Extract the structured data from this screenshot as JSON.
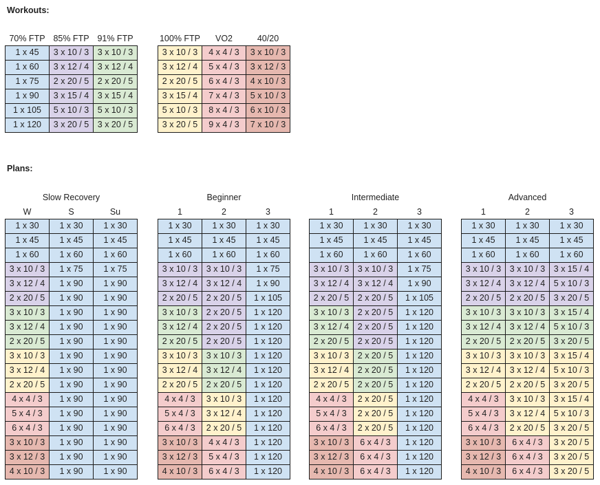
{
  "sections": {
    "workouts_title": "Workouts:",
    "plans_title": "Plans:"
  },
  "colors": {
    "b": "#cfe2f3",
    "p": "#d9d2e9",
    "g": "#d9ead3",
    "y": "#fff2cc",
    "r": "#f4cccc",
    "d": "#e6b8af"
  },
  "workouts": [
    {
      "headers": [
        "70% FTP",
        "85% FTP",
        "91% FTP"
      ],
      "rows": [
        [
          [
            "1 x 45",
            "b"
          ],
          [
            "3 x 10 / 3",
            "p"
          ],
          [
            "3 x 10 / 3",
            "g"
          ]
        ],
        [
          [
            "1 x 60",
            "b"
          ],
          [
            "3 x 12 / 4",
            "p"
          ],
          [
            "3 x 12 / 4",
            "g"
          ]
        ],
        [
          [
            "1 x 75",
            "b"
          ],
          [
            "2 x 20 / 5",
            "p"
          ],
          [
            "2 x 20 / 5",
            "g"
          ]
        ],
        [
          [
            "1 x 90",
            "b"
          ],
          [
            "3 x 15 / 4",
            "p"
          ],
          [
            "3 x 15 / 4",
            "g"
          ]
        ],
        [
          [
            "1 x 105",
            "b"
          ],
          [
            "5 x 10 / 3",
            "p"
          ],
          [
            "5 x 10 / 3",
            "g"
          ]
        ],
        [
          [
            "1 x 120",
            "b"
          ],
          [
            "3 x 20 / 5",
            "p"
          ],
          [
            "3 x 20 / 5",
            "g"
          ]
        ]
      ]
    },
    {
      "headers": [
        "100% FTP",
        "VO2",
        "40/20"
      ],
      "rows": [
        [
          [
            "3 x 10 / 3",
            "y"
          ],
          [
            "4 x 4 / 3",
            "r"
          ],
          [
            "3 x 10 / 3",
            "d"
          ]
        ],
        [
          [
            "3 x 12 / 4",
            "y"
          ],
          [
            "5 x 4 / 3",
            "r"
          ],
          [
            "3 x 12 / 3",
            "d"
          ]
        ],
        [
          [
            "2 x 20 / 5",
            "y"
          ],
          [
            "6 x 4 / 3",
            "r"
          ],
          [
            "4 x 10 / 3",
            "d"
          ]
        ],
        [
          [
            "3 x 15 / 4",
            "y"
          ],
          [
            "7 x 4 / 3",
            "r"
          ],
          [
            "5 x 10 / 3",
            "d"
          ]
        ],
        [
          [
            "5 x 10 / 3",
            "y"
          ],
          [
            "8 x 4 / 3",
            "r"
          ],
          [
            "6 x 10 / 3",
            "d"
          ]
        ],
        [
          [
            "3 x 20 / 5",
            "y"
          ],
          [
            "9 x 4 / 3",
            "r"
          ],
          [
            "7 x 10 / 3",
            "d"
          ]
        ]
      ]
    }
  ],
  "plans": [
    {
      "title": "Slow Recovery",
      "headers": [
        "W",
        "S",
        "Su"
      ],
      "rows": [
        [
          [
            "1 x 30",
            "b"
          ],
          [
            "1 x 30",
            "b"
          ],
          [
            "1 x 30",
            "b"
          ]
        ],
        [
          [
            "1 x 45",
            "b"
          ],
          [
            "1 x 45",
            "b"
          ],
          [
            "1 x 45",
            "b"
          ]
        ],
        [
          [
            "1 x 60",
            "b"
          ],
          [
            "1 x 60",
            "b"
          ],
          [
            "1 x 60",
            "b"
          ]
        ],
        [
          [
            "3 x 10 / 3",
            "p"
          ],
          [
            "1 x 75",
            "b"
          ],
          [
            "1 x 75",
            "b"
          ]
        ],
        [
          [
            "3 x 12 / 4",
            "p"
          ],
          [
            "1 x 90",
            "b"
          ],
          [
            "1 x 90",
            "b"
          ]
        ],
        [
          [
            "2 x 20 / 5",
            "p"
          ],
          [
            "1 x 90",
            "b"
          ],
          [
            "1 x 90",
            "b"
          ]
        ],
        [
          [
            "3 x 10 / 3",
            "g"
          ],
          [
            "1 x 90",
            "b"
          ],
          [
            "1 x 90",
            "b"
          ]
        ],
        [
          [
            "3 x 12 / 4",
            "g"
          ],
          [
            "1 x 90",
            "b"
          ],
          [
            "1 x 90",
            "b"
          ]
        ],
        [
          [
            "2 x 20 / 5",
            "g"
          ],
          [
            "1 x 90",
            "b"
          ],
          [
            "1 x 90",
            "b"
          ]
        ],
        [
          [
            "3 x 10 / 3",
            "y"
          ],
          [
            "1 x 90",
            "b"
          ],
          [
            "1 x 90",
            "b"
          ]
        ],
        [
          [
            "3 x 12 / 4",
            "y"
          ],
          [
            "1 x 90",
            "b"
          ],
          [
            "1 x 90",
            "b"
          ]
        ],
        [
          [
            "2 x 20 / 5",
            "y"
          ],
          [
            "1 x 90",
            "b"
          ],
          [
            "1 x 90",
            "b"
          ]
        ],
        [
          [
            "4 x 4 / 3",
            "r"
          ],
          [
            "1 x 90",
            "b"
          ],
          [
            "1 x 90",
            "b"
          ]
        ],
        [
          [
            "5 x 4 / 3",
            "r"
          ],
          [
            "1 x 90",
            "b"
          ],
          [
            "1 x 90",
            "b"
          ]
        ],
        [
          [
            "6 x 4 / 3",
            "r"
          ],
          [
            "1 x 90",
            "b"
          ],
          [
            "1 x 90",
            "b"
          ]
        ],
        [
          [
            "3 x 10 / 3",
            "d"
          ],
          [
            "1 x 90",
            "b"
          ],
          [
            "1 x 90",
            "b"
          ]
        ],
        [
          [
            "3 x 12 / 3",
            "d"
          ],
          [
            "1 x 90",
            "b"
          ],
          [
            "1 x 90",
            "b"
          ]
        ],
        [
          [
            "4 x 10 / 3",
            "d"
          ],
          [
            "1 x 90",
            "b"
          ],
          [
            "1 x 90",
            "b"
          ]
        ]
      ]
    },
    {
      "title": "Beginner",
      "headers": [
        "1",
        "2",
        "3"
      ],
      "rows": [
        [
          [
            "1 x 30",
            "b"
          ],
          [
            "1 x 30",
            "b"
          ],
          [
            "1 x 30",
            "b"
          ]
        ],
        [
          [
            "1 x 45",
            "b"
          ],
          [
            "1 x 45",
            "b"
          ],
          [
            "1 x 45",
            "b"
          ]
        ],
        [
          [
            "1 x 60",
            "b"
          ],
          [
            "1 x 60",
            "b"
          ],
          [
            "1 x 60",
            "b"
          ]
        ],
        [
          [
            "3 x 10 / 3",
            "p"
          ],
          [
            "3 x 10 / 3",
            "p"
          ],
          [
            "1 x 75",
            "b"
          ]
        ],
        [
          [
            "3 x 12 / 4",
            "p"
          ],
          [
            "3 x 12 / 4",
            "p"
          ],
          [
            "1 x 90",
            "b"
          ]
        ],
        [
          [
            "2 x 20 / 5",
            "p"
          ],
          [
            "2 x 20 / 5",
            "p"
          ],
          [
            "1 x 105",
            "b"
          ]
        ],
        [
          [
            "3 x 10 / 3",
            "g"
          ],
          [
            "2 x 20 / 5",
            "p"
          ],
          [
            "1 x 120",
            "b"
          ]
        ],
        [
          [
            "3 x 12 / 4",
            "g"
          ],
          [
            "2 x 20 / 5",
            "p"
          ],
          [
            "1 x 120",
            "b"
          ]
        ],
        [
          [
            "2 x 20 / 5",
            "g"
          ],
          [
            "2 x 20 / 5",
            "p"
          ],
          [
            "1 x 120",
            "b"
          ]
        ],
        [
          [
            "3 x 10 / 3",
            "y"
          ],
          [
            "3 x 10 / 3",
            "g"
          ],
          [
            "1 x 120",
            "b"
          ]
        ],
        [
          [
            "3 x 12 / 4",
            "y"
          ],
          [
            "3 x 12 / 4",
            "g"
          ],
          [
            "1 x 120",
            "b"
          ]
        ],
        [
          [
            "2 x 20 / 5",
            "y"
          ],
          [
            "2 x 20 / 5",
            "g"
          ],
          [
            "1 x 120",
            "b"
          ]
        ],
        [
          [
            "4 x 4 / 3",
            "r"
          ],
          [
            "3 x 10 / 3",
            "y"
          ],
          [
            "1 x 120",
            "b"
          ]
        ],
        [
          [
            "5 x 4 / 3",
            "r"
          ],
          [
            "3 x 12 / 4",
            "y"
          ],
          [
            "1 x 120",
            "b"
          ]
        ],
        [
          [
            "6 x 4 / 3",
            "r"
          ],
          [
            "2 x 20 / 5",
            "y"
          ],
          [
            "1 x 120",
            "b"
          ]
        ],
        [
          [
            "3 x 10 / 3",
            "d"
          ],
          [
            "4 x 4 / 3",
            "r"
          ],
          [
            "1 x 120",
            "b"
          ]
        ],
        [
          [
            "3 x 12 / 3",
            "d"
          ],
          [
            "5 x 4 / 3",
            "r"
          ],
          [
            "1 x 120",
            "b"
          ]
        ],
        [
          [
            "4 x 10 / 3",
            "d"
          ],
          [
            "6 x 4 / 3",
            "r"
          ],
          [
            "1 x 120",
            "b"
          ]
        ]
      ]
    },
    {
      "title": "Intermediate",
      "headers": [
        "1",
        "2",
        "3"
      ],
      "rows": [
        [
          [
            "1 x 30",
            "b"
          ],
          [
            "1 x 30",
            "b"
          ],
          [
            "1 x 30",
            "b"
          ]
        ],
        [
          [
            "1 x 45",
            "b"
          ],
          [
            "1 x 45",
            "b"
          ],
          [
            "1 x 45",
            "b"
          ]
        ],
        [
          [
            "1 x 60",
            "b"
          ],
          [
            "1 x 60",
            "b"
          ],
          [
            "1 x 60",
            "b"
          ]
        ],
        [
          [
            "3 x 10 / 3",
            "p"
          ],
          [
            "3 x 10 / 3",
            "p"
          ],
          [
            "1 x 75",
            "b"
          ]
        ],
        [
          [
            "3 x 12 / 4",
            "p"
          ],
          [
            "3 x 12 / 4",
            "p"
          ],
          [
            "1 x 90",
            "b"
          ]
        ],
        [
          [
            "2 x 20 / 5",
            "p"
          ],
          [
            "2 x 20 / 5",
            "p"
          ],
          [
            "1 x 105",
            "b"
          ]
        ],
        [
          [
            "3 x 10 / 3",
            "g"
          ],
          [
            "2 x 20 / 5",
            "p"
          ],
          [
            "1 x 120",
            "b"
          ]
        ],
        [
          [
            "3 x 12 / 4",
            "g"
          ],
          [
            "2 x 20 / 5",
            "p"
          ],
          [
            "1 x 120",
            "b"
          ]
        ],
        [
          [
            "2 x 20 / 5",
            "g"
          ],
          [
            "2 x 20 / 5",
            "p"
          ],
          [
            "1 x 120",
            "b"
          ]
        ],
        [
          [
            "3 x 10 / 3",
            "y"
          ],
          [
            "2 x 20 / 5",
            "g"
          ],
          [
            "1 x 120",
            "b"
          ]
        ],
        [
          [
            "3 x 12 / 4",
            "y"
          ],
          [
            "2 x 20 / 5",
            "g"
          ],
          [
            "1 x 120",
            "b"
          ]
        ],
        [
          [
            "2 x 20 / 5",
            "y"
          ],
          [
            "2 x 20 / 5",
            "g"
          ],
          [
            "1 x 120",
            "b"
          ]
        ],
        [
          [
            "4 x 4 / 3",
            "r"
          ],
          [
            "2 x 20 / 5",
            "y"
          ],
          [
            "1 x 120",
            "b"
          ]
        ],
        [
          [
            "5 x 4 / 3",
            "r"
          ],
          [
            "2 x 20 / 5",
            "y"
          ],
          [
            "1 x 120",
            "b"
          ]
        ],
        [
          [
            "6 x 4 / 3",
            "r"
          ],
          [
            "2 x 20 / 5",
            "y"
          ],
          [
            "1 x 120",
            "b"
          ]
        ],
        [
          [
            "3 x 10 / 3",
            "d"
          ],
          [
            "6 x 4 / 3",
            "r"
          ],
          [
            "1 x 120",
            "b"
          ]
        ],
        [
          [
            "3 x 12 / 3",
            "d"
          ],
          [
            "6 x 4 / 3",
            "r"
          ],
          [
            "1 x 120",
            "b"
          ]
        ],
        [
          [
            "4 x 10 / 3",
            "d"
          ],
          [
            "6 x 4 / 3",
            "r"
          ],
          [
            "1 x 120",
            "b"
          ]
        ]
      ]
    },
    {
      "title": "Advanced",
      "headers": [
        "1",
        "2",
        "3"
      ],
      "rows": [
        [
          [
            "1 x 30",
            "b"
          ],
          [
            "1 x 30",
            "b"
          ],
          [
            "1 x 30",
            "b"
          ]
        ],
        [
          [
            "1 x 45",
            "b"
          ],
          [
            "1 x 45",
            "b"
          ],
          [
            "1 x 45",
            "b"
          ]
        ],
        [
          [
            "1 x 60",
            "b"
          ],
          [
            "1 x 60",
            "b"
          ],
          [
            "1 x 60",
            "b"
          ]
        ],
        [
          [
            "3 x 10 / 3",
            "p"
          ],
          [
            "3 x 10 / 3",
            "p"
          ],
          [
            "3 x 15 / 4",
            "p"
          ]
        ],
        [
          [
            "3 x 12 / 4",
            "p"
          ],
          [
            "3 x 12 / 4",
            "p"
          ],
          [
            "5 x 10 / 3",
            "p"
          ]
        ],
        [
          [
            "2 x 20 / 5",
            "p"
          ],
          [
            "2 x 20 / 5",
            "p"
          ],
          [
            "3 x 20 / 5",
            "p"
          ]
        ],
        [
          [
            "3 x 10 / 3",
            "g"
          ],
          [
            "3 x 10 / 3",
            "g"
          ],
          [
            "3 x 15 / 4",
            "g"
          ]
        ],
        [
          [
            "3 x 12 / 4",
            "g"
          ],
          [
            "3 x 12 / 4",
            "g"
          ],
          [
            "5 x 10 / 3",
            "g"
          ]
        ],
        [
          [
            "2 x 20 / 5",
            "g"
          ],
          [
            "2 x 20 / 5",
            "g"
          ],
          [
            "3 x 20 / 5",
            "g"
          ]
        ],
        [
          [
            "3 x 10 / 3",
            "y"
          ],
          [
            "3 x 10 / 3",
            "y"
          ],
          [
            "3 x 15 / 4",
            "y"
          ]
        ],
        [
          [
            "3 x 12 / 4",
            "y"
          ],
          [
            "3 x 12 / 4",
            "y"
          ],
          [
            "5 x 10 / 3",
            "y"
          ]
        ],
        [
          [
            "2 x 20 / 5",
            "y"
          ],
          [
            "2 x 20 / 5",
            "y"
          ],
          [
            "3 x 20 / 5",
            "y"
          ]
        ],
        [
          [
            "4 x 4 / 3",
            "r"
          ],
          [
            "3 x 10 / 3",
            "y"
          ],
          [
            "3 x 15 / 4",
            "y"
          ]
        ],
        [
          [
            "5 x 4 / 3",
            "r"
          ],
          [
            "3 x 12 / 4",
            "y"
          ],
          [
            "5 x 10 / 3",
            "y"
          ]
        ],
        [
          [
            "6 x 4 / 3",
            "r"
          ],
          [
            "2 x 20 / 5",
            "y"
          ],
          [
            "3 x 20 / 5",
            "y"
          ]
        ],
        [
          [
            "3 x 10 / 3",
            "d"
          ],
          [
            "6 x 4 / 3",
            "r"
          ],
          [
            "3 x 20 / 5",
            "y"
          ]
        ],
        [
          [
            "3 x 12 / 3",
            "d"
          ],
          [
            "6 x 4 / 3",
            "r"
          ],
          [
            "3 x 20 / 5",
            "y"
          ]
        ],
        [
          [
            "4 x 10 / 3",
            "d"
          ],
          [
            "6 x 4 / 3",
            "r"
          ],
          [
            "3 x 20 / 5",
            "y"
          ]
        ]
      ]
    }
  ]
}
